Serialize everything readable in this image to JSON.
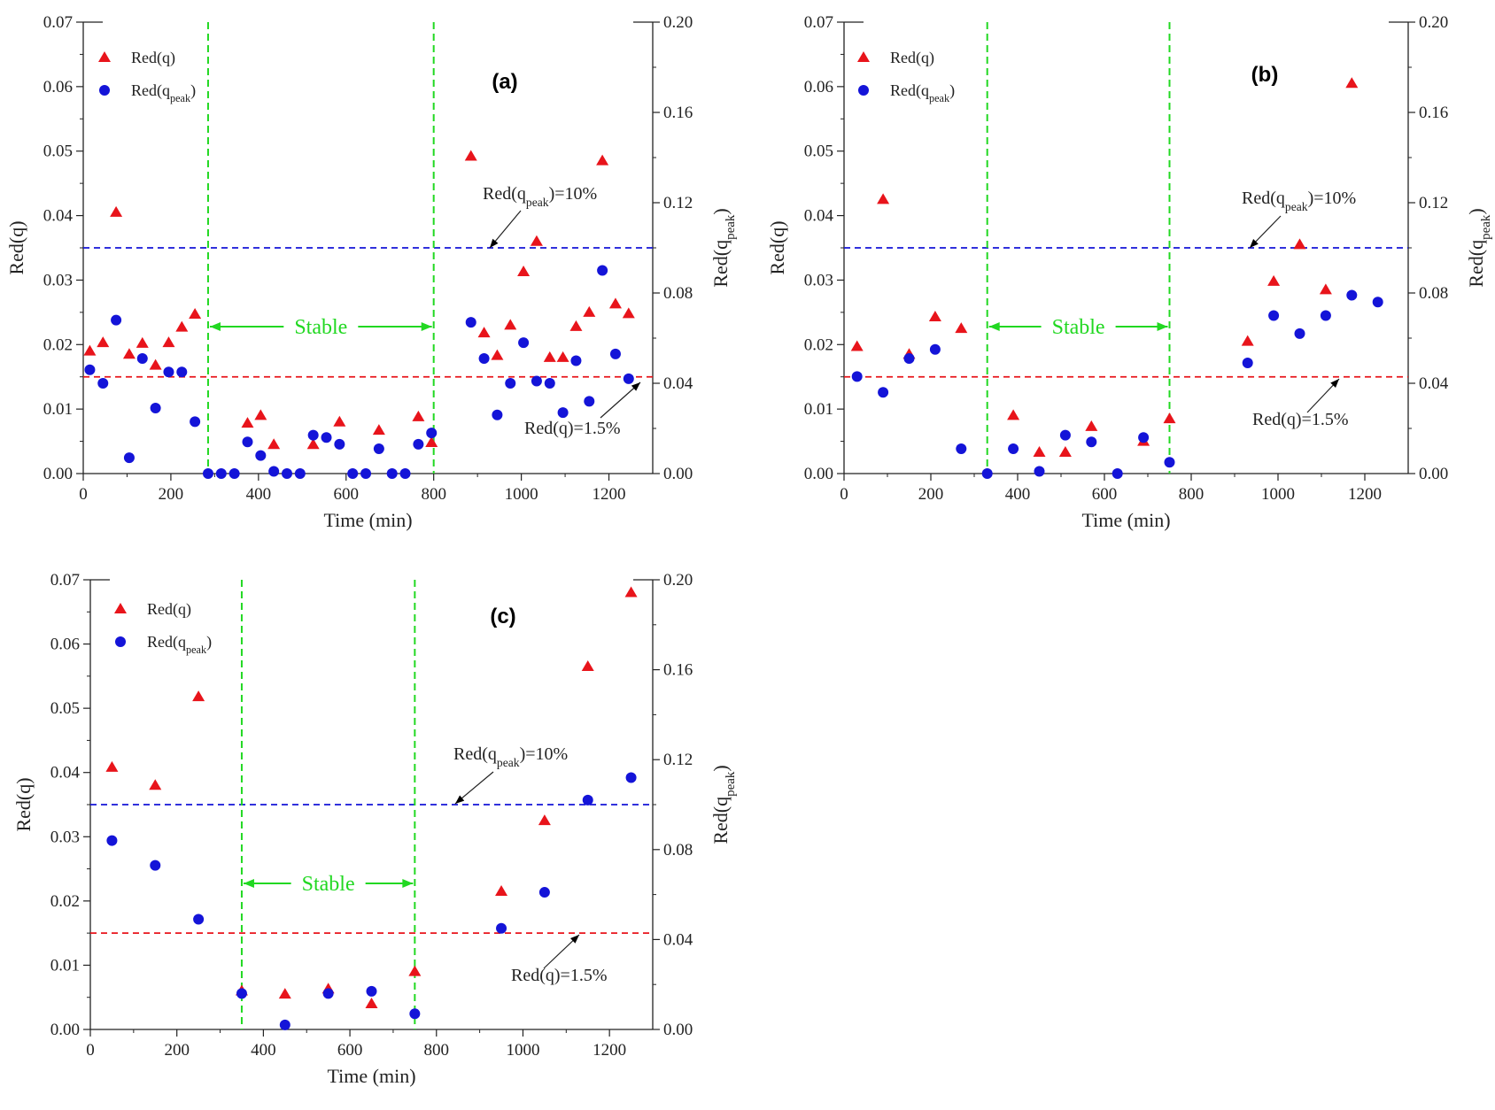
{
  "figure": {
    "left_axis_label": "Red(q)",
    "right_axis_label": "Red(q",
    "right_axis_label_sub": "peak",
    "right_axis_label_close": ")",
    "x_axis_label": "Time (min)",
    "stable_label": "Stable",
    "legend": {
      "red_q": "Red(q)",
      "red_qpeak": "Red(q",
      "red_qpeak_sub": "peak",
      "red_qpeak_close": ")"
    },
    "notes": {
      "qpeak_threshold": "Red(q",
      "qpeak_threshold_sub": "peak",
      "qpeak_threshold_rest": ")=10%",
      "q_threshold": "Red(q)=1.5%"
    },
    "colors": {
      "red_q": "#e8141b",
      "red_qpeak": "#1414d8",
      "stable_lines": "#22d822",
      "threshold_q": "#e8141b",
      "threshold_qpeak": "#1414d8"
    }
  },
  "chart_data": [
    {
      "panel_label": "(a)",
      "type": "scatter",
      "x_axis": {
        "label": "Time (min)",
        "range": [
          0,
          1300
        ],
        "ticks": [
          0,
          200,
          400,
          600,
          800,
          1000,
          1200
        ]
      },
      "y_left": {
        "label": "Red(q)",
        "range": [
          0,
          0.07
        ],
        "ticks": [
          "0.00",
          "0.01",
          "0.02",
          "0.03",
          "0.04",
          "0.05",
          "0.06",
          "0.07"
        ]
      },
      "y_right": {
        "label": "Red(q_peak)",
        "range": [
          0,
          0.2
        ],
        "ticks": [
          "0.00",
          "0.04",
          "0.08",
          "0.12",
          "0.16",
          "0.20"
        ]
      },
      "stable_range": [
        285,
        800
      ],
      "threshold_q": 0.015,
      "threshold_qpeak": 0.1,
      "legend_position": "top-left",
      "series": [
        {
          "name": "Red(q)",
          "axis": "left",
          "marker": "triangle",
          "x": [
            15,
            45,
            75,
            105,
            135,
            165,
            195,
            225,
            255,
            375,
            405,
            435,
            525,
            585,
            675,
            765,
            795,
            885,
            915,
            945,
            975,
            1005,
            1035,
            1065,
            1095,
            1125,
            1155,
            1185,
            1215,
            1245
          ],
          "y": [
            0.019,
            0.0203,
            0.0405,
            0.0185,
            0.0202,
            0.0168,
            0.0203,
            0.0227,
            0.0247,
            0.0078,
            0.009,
            0.0045,
            0.0045,
            0.008,
            0.0067,
            0.0088,
            0.0048,
            0.0492,
            0.0218,
            0.0183,
            0.023,
            0.0313,
            0.036,
            0.018,
            0.018,
            0.0228,
            0.025,
            0.0485,
            0.0263,
            0.0248
          ]
        },
        {
          "name": "Red(q_peak)",
          "axis": "right",
          "marker": "circle",
          "x": [
            15,
            45,
            75,
            105,
            135,
            165,
            195,
            225,
            255,
            285,
            315,
            345,
            375,
            405,
            435,
            465,
            495,
            525,
            555,
            585,
            615,
            645,
            675,
            705,
            735,
            765,
            795,
            885,
            915,
            945,
            975,
            1005,
            1035,
            1065,
            1095,
            1125,
            1155,
            1185,
            1215,
            1245
          ],
          "y": [
            0.046,
            0.04,
            0.068,
            0.007,
            0.051,
            0.029,
            0.045,
            0.045,
            0.023,
            0.0,
            0.0,
            0.0,
            0.014,
            0.008,
            0.001,
            0.0,
            0.0,
            0.017,
            0.016,
            0.013,
            0.0,
            0.0,
            0.011,
            0.0,
            0.0,
            0.013,
            0.018,
            0.067,
            0.051,
            0.026,
            0.04,
            0.058,
            0.041,
            0.04,
            0.027,
            0.05,
            0.032,
            0.09,
            0.053,
            0.042
          ]
        }
      ]
    },
    {
      "panel_label": "(b)",
      "type": "scatter",
      "x_axis": {
        "label": "Time (min)",
        "range": [
          0,
          1300
        ],
        "ticks": [
          0,
          200,
          400,
          600,
          800,
          1000,
          1200
        ]
      },
      "y_left": {
        "label": "Red(q)",
        "range": [
          0,
          0.07
        ],
        "ticks": [
          "0.00",
          "0.01",
          "0.02",
          "0.03",
          "0.04",
          "0.05",
          "0.06",
          "0.07"
        ]
      },
      "y_right": {
        "label": "Red(q_peak)",
        "range": [
          0,
          0.2
        ],
        "ticks": [
          "0.00",
          "0.04",
          "0.08",
          "0.12",
          "0.16",
          "0.20"
        ]
      },
      "stable_range": [
        330,
        750
      ],
      "threshold_q": 0.015,
      "threshold_qpeak": 0.1,
      "legend_position": "top-left",
      "series": [
        {
          "name": "Red(q)",
          "axis": "left",
          "marker": "triangle",
          "x": [
            30,
            90,
            150,
            210,
            270,
            390,
            450,
            510,
            570,
            690,
            750,
            930,
            990,
            1050,
            1110,
            1170
          ],
          "y": [
            0.0197,
            0.0425,
            0.0185,
            0.0243,
            0.0225,
            0.009,
            0.0033,
            0.0033,
            0.0073,
            0.005,
            0.0085,
            0.0205,
            0.0298,
            0.0355,
            0.0285,
            0.0605
          ]
        },
        {
          "name": "Red(q_peak)",
          "axis": "right",
          "marker": "circle",
          "x": [
            30,
            90,
            150,
            210,
            270,
            330,
            390,
            450,
            510,
            570,
            630,
            690,
            750,
            930,
            990,
            1050,
            1110,
            1170,
            1230
          ],
          "y": [
            0.043,
            0.036,
            0.051,
            0.055,
            0.011,
            0.0,
            0.011,
            0.001,
            0.017,
            0.014,
            0.0,
            0.016,
            0.005,
            0.049,
            0.07,
            0.062,
            0.07,
            0.079,
            0.076
          ]
        }
      ]
    },
    {
      "panel_label": "(c)",
      "type": "scatter",
      "x_axis": {
        "label": "Time (min)",
        "range": [
          0,
          1300
        ],
        "ticks": [
          0,
          200,
          400,
          600,
          800,
          1000,
          1200
        ]
      },
      "y_left": {
        "label": "Red(q)",
        "range": [
          0,
          0.07
        ],
        "ticks": [
          "0.00",
          "0.01",
          "0.02",
          "0.03",
          "0.04",
          "0.05",
          "0.06",
          "0.07"
        ]
      },
      "y_right": {
        "label": "Red(q_peak)",
        "range": [
          0,
          0.2
        ],
        "ticks": [
          "0.00",
          "0.04",
          "0.08",
          "0.12",
          "0.16",
          "0.20"
        ]
      },
      "stable_range": [
        350,
        750
      ],
      "threshold_q": 0.015,
      "threshold_qpeak": 0.1,
      "legend_position": "top-left",
      "series": [
        {
          "name": "Red(q)",
          "axis": "left",
          "marker": "triangle",
          "x": [
            50,
            150,
            250,
            350,
            450,
            550,
            650,
            750,
            950,
            1050,
            1150,
            1250
          ],
          "y": [
            0.0408,
            0.038,
            0.0518,
            0.006,
            0.0055,
            0.0063,
            0.004,
            0.009,
            0.0215,
            0.0325,
            0.0565,
            0.068
          ]
        },
        {
          "name": "Red(q_peak)",
          "axis": "right",
          "marker": "circle",
          "x": [
            50,
            150,
            250,
            350,
            450,
            550,
            650,
            750,
            950,
            1050,
            1150,
            1250
          ],
          "y": [
            0.084,
            0.073,
            0.049,
            0.016,
            0.002,
            0.016,
            0.017,
            0.007,
            0.045,
            0.061,
            0.102,
            0.112
          ]
        }
      ]
    }
  ]
}
